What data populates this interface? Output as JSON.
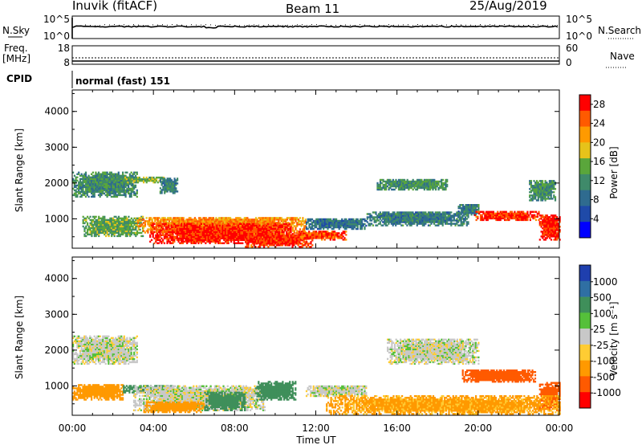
{
  "header": {
    "station": "Inuvik (fitACF)",
    "beam": "Beam 11",
    "date": "25/Aug/2019"
  },
  "panels": {
    "nsky": {
      "label_left": "N.Sky",
      "label_right": "N.Search",
      "left_ticks": [
        "10^5",
        "10^0"
      ],
      "right_ticks": [
        "10^5",
        "10^0"
      ]
    },
    "freq": {
      "label_left_1": "Freq.",
      "label_left_2": "[MHz]",
      "label_right": "Nave",
      "left_ticks": [
        "18",
        "8"
      ],
      "right_ticks": [
        "60",
        "0"
      ]
    },
    "cpid": {
      "label": "CPID",
      "text": "normal (fast) 151"
    }
  },
  "colors": {
    "power_scale": [
      "#0000ff",
      "#1f4aa8",
      "#2f6b8f",
      "#3f8a6a",
      "#5aa63b",
      "#e6c31a",
      "#ff9a00",
      "#ff5a00",
      "#ff0000"
    ],
    "velocity_scale": [
      "#1f3fae",
      "#2f6fa3",
      "#3f8f5a",
      "#55c03a",
      "#c8c8c8",
      "#ffcc33",
      "#ff9900",
      "#ff5a00",
      "#ff0000"
    ]
  },
  "chart_data": [
    {
      "type": "heatmap",
      "title": "",
      "xlabel": "",
      "ylabel": "Slant Range [km]",
      "x_ticks": [
        "00:00",
        "04:00",
        "08:00",
        "12:00",
        "16:00",
        "20:00",
        "00:00"
      ],
      "y_ticks": [
        "1000",
        "2000",
        "3000",
        "4000"
      ],
      "xlim": [
        0,
        24
      ],
      "ylim": [
        180,
        4600
      ],
      "colorbar": {
        "label": "Power [dB]",
        "ticks": [
          "4",
          "8",
          "12",
          "16",
          "20",
          "24",
          "28"
        ],
        "range": [
          0,
          30
        ]
      },
      "regions": [
        {
          "t0": 0.0,
          "t1": 3.2,
          "r0": 1600,
          "r1": 2300,
          "value": 12
        },
        {
          "t0": 0.5,
          "t1": 3.5,
          "r0": 500,
          "r1": 1050,
          "value": 14
        },
        {
          "t0": 2.5,
          "t1": 4.5,
          "r0": 2000,
          "r1": 2150,
          "value": 14
        },
        {
          "t0": 4.3,
          "t1": 5.2,
          "r0": 1700,
          "r1": 2150,
          "value": 10
        },
        {
          "t0": 3.2,
          "t1": 11.5,
          "r0": 600,
          "r1": 1050,
          "value": 22
        },
        {
          "t0": 3.8,
          "t1": 10.8,
          "r0": 300,
          "r1": 850,
          "value": 28
        },
        {
          "t0": 8.5,
          "t1": 11.8,
          "r0": 200,
          "r1": 600,
          "value": 27
        },
        {
          "t0": 11.0,
          "t1": 13.5,
          "r0": 400,
          "r1": 650,
          "value": 26
        },
        {
          "t0": 11.5,
          "t1": 14.5,
          "r0": 700,
          "r1": 1000,
          "value": 9
        },
        {
          "t0": 14.5,
          "t1": 19.5,
          "r0": 800,
          "r1": 1200,
          "value": 10
        },
        {
          "t0": 15.0,
          "t1": 18.5,
          "r0": 1800,
          "r1": 2100,
          "value": 12
        },
        {
          "t0": 19.0,
          "t1": 20.0,
          "r0": 1100,
          "r1": 1400,
          "value": 10
        },
        {
          "t0": 19.8,
          "t1": 23.0,
          "r0": 950,
          "r1": 1200,
          "value": 27
        },
        {
          "t0": 22.5,
          "t1": 23.8,
          "r0": 1500,
          "r1": 2050,
          "value": 12
        },
        {
          "t0": 23.0,
          "t1": 24.0,
          "r0": 400,
          "r1": 1100,
          "value": 28
        }
      ]
    },
    {
      "type": "heatmap",
      "title": "",
      "xlabel": "Time UT",
      "ylabel": "Slant Range [km]",
      "x_ticks": [
        "00:00",
        "04:00",
        "08:00",
        "12:00",
        "16:00",
        "20:00",
        "00:00"
      ],
      "y_ticks": [
        "1000",
        "2000",
        "3000",
        "4000"
      ],
      "xlim": [
        0,
        24
      ],
      "ylim": [
        180,
        4600
      ],
      "colorbar": {
        "label": "Velocity [m s⁻¹]",
        "ticks": [
          "1000",
          "500",
          "100",
          "25",
          "-25",
          "-100",
          "-500",
          "-1000"
        ],
        "range": [
          -1000,
          1000
        ]
      },
      "regions": [
        {
          "t0": 0.0,
          "t1": 3.2,
          "r0": 1600,
          "r1": 2400,
          "value": 0
        },
        {
          "t0": 0.0,
          "t1": 2.5,
          "r0": 600,
          "r1": 1050,
          "value": -100
        },
        {
          "t0": 2.5,
          "t1": 5.0,
          "r0": 800,
          "r1": 1000,
          "value": 120
        },
        {
          "t0": 3.0,
          "t1": 9.5,
          "r0": 300,
          "r1": 1000,
          "value": 0
        },
        {
          "t0": 3.5,
          "t1": 6.5,
          "r0": 250,
          "r1": 550,
          "value": -150
        },
        {
          "t0": 6.5,
          "t1": 8.5,
          "r0": 300,
          "r1": 800,
          "value": 120
        },
        {
          "t0": 9.0,
          "t1": 11.0,
          "r0": 600,
          "r1": 1100,
          "value": 200
        },
        {
          "t0": 11.5,
          "t1": 14.5,
          "r0": 700,
          "r1": 1000,
          "value": 0
        },
        {
          "t0": 15.5,
          "t1": 20.0,
          "r0": 1600,
          "r1": 2300,
          "value": 0
        },
        {
          "t0": 19.2,
          "t1": 22.8,
          "r0": 1100,
          "r1": 1450,
          "value": -700
        },
        {
          "t0": 23.0,
          "t1": 24.0,
          "r0": 300,
          "r1": 1100,
          "value": -700
        },
        {
          "t0": 12.5,
          "t1": 24.0,
          "r0": 200,
          "r1": 700,
          "value": -80
        }
      ]
    }
  ]
}
